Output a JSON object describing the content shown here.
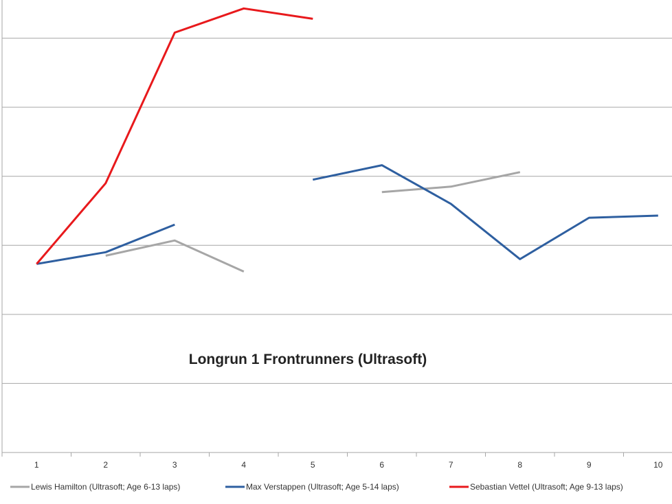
{
  "chart_data": {
    "type": "line",
    "title": "Longrun 1 Frontrunners (Ultrasoft)",
    "xlabel": "",
    "ylabel": "",
    "categories": [
      "1",
      "2",
      "3",
      "4",
      "5",
      "6",
      "7",
      "8",
      "9",
      "10"
    ],
    "ylim": [
      0,
      7
    ],
    "grid": true,
    "legend_position": "bottom",
    "series": [
      {
        "name": "Lewis Hamilton (Ultrasoft; Age 6-13 laps)",
        "color": "#a6a6a6",
        "values": [
          null,
          2.85,
          3.07,
          2.62,
          null,
          3.77,
          3.85,
          4.06,
          null,
          null
        ]
      },
      {
        "name": "Max Verstappen (Ultrasoft; Age 5-14 laps)",
        "color": "#2e5fa0",
        "values": [
          2.73,
          2.9,
          3.3,
          null,
          3.95,
          4.16,
          3.6,
          2.8,
          3.4,
          3.43
        ]
      },
      {
        "name": "Sebastian Vettel (Ultrasoft; Age 9-13 laps)",
        "color": "#e8191c",
        "values": [
          2.73,
          3.9,
          6.08,
          6.43,
          6.28,
          null,
          null,
          null,
          null,
          null
        ]
      }
    ]
  }
}
